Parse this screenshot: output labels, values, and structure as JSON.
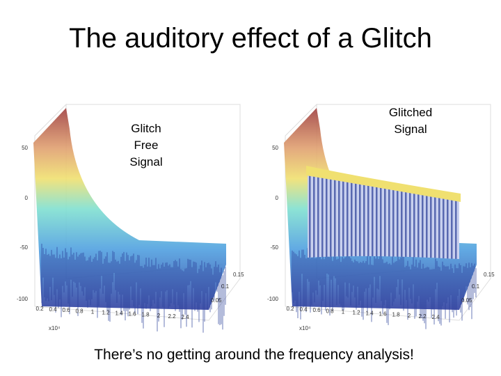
{
  "title": "The auditory effect of a Glitch",
  "plots": [
    {
      "label": [
        "Glitch",
        "Free",
        "Signal"
      ],
      "z_ticks": [
        "50",
        "0",
        "-50",
        "-100"
      ],
      "x_ticks": [
        "0.2",
        "0.4",
        "0.6",
        "0.8",
        "1",
        "1.2",
        "1.4",
        "1.6",
        "1.8",
        "2",
        "2.2",
        "2.4"
      ],
      "x_multiplier": "x10⁴",
      "y_ticks": [
        "0.15",
        "0.1",
        "0.05"
      ]
    },
    {
      "label": [
        "Glitched",
        "Signal"
      ],
      "z_ticks": [
        "50",
        "0",
        "-50",
        "-100"
      ],
      "x_ticks": [
        "0.2",
        "0.4",
        "0.6",
        "0.8",
        "1",
        "1.2",
        "1.4",
        "1.6",
        "1.8",
        "2",
        "2.2",
        "2.4"
      ],
      "x_multiplier": "x10⁴",
      "y_ticks": [
        "0.15",
        "0.1",
        "0.05"
      ]
    }
  ],
  "caption": "There’s no getting around the frequency analysis!"
}
